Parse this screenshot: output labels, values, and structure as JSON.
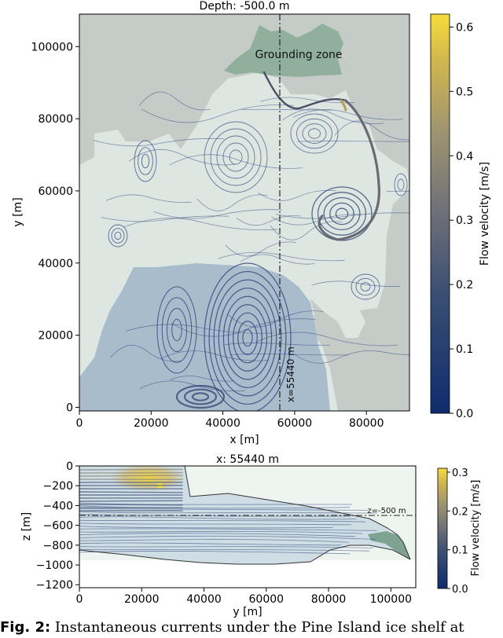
{
  "chart_data": [
    {
      "type": "streamplot",
      "title": "Depth: -500.0 m",
      "xlabel": "x [m]",
      "ylabel": "y [m]",
      "xlim": [
        0,
        92000
      ],
      "ylim": [
        -1000,
        109000
      ],
      "xticks": [
        0,
        20000,
        40000,
        60000,
        80000
      ],
      "yticks": [
        0,
        20000,
        40000,
        60000,
        80000,
        100000
      ],
      "colorbar": {
        "label": "Flow velocity [m/s]",
        "range": [
          0,
          0.62
        ],
        "ticks": [
          "0.0",
          "0.1",
          "0.2",
          "0.3",
          "0.4",
          "0.5",
          "0.6"
        ]
      },
      "annotations": [
        {
          "text": "Grounding zone",
          "x": 52000,
          "y": 98000
        },
        {
          "text": "x=55440 m",
          "x": 57500,
          "y": 8000,
          "rotation": 90
        }
      ],
      "section_line_x": 55440,
      "colors": {
        "grounded_ice": "#c5ccc8",
        "ice_shelf": "#dbe5e0",
        "open_ocean": "#a9bccb",
        "grounding_zone": "#8aac98",
        "stream_low": "#1a2f70",
        "stream_high": "#e9c83a"
      }
    },
    {
      "type": "streamplot",
      "title": "x: 55440 m",
      "xlabel": "y [m]",
      "ylabel": "z [m]",
      "xlim": [
        0,
        108000
      ],
      "ylim": [
        -1230,
        0
      ],
      "xticks": [
        0,
        20000,
        40000,
        60000,
        80000,
        100000
      ],
      "yticks": [
        0,
        -200,
        -400,
        -600,
        -800,
        -1000,
        -1200
      ],
      "colorbar": {
        "label": "Flow velocity [m/s]",
        "range": [
          0,
          0.31
        ],
        "ticks": [
          "0.0",
          "0.1",
          "0.2",
          "0.3"
        ]
      },
      "annotations": [
        {
          "text": "z=-500 m",
          "x": 100000,
          "y": -470
        }
      ],
      "reference_depth": -500
    }
  ],
  "caption": {
    "label": "Fig. 2:",
    "text": "Instantaneous currents under the Pine Island ice shelf at"
  }
}
